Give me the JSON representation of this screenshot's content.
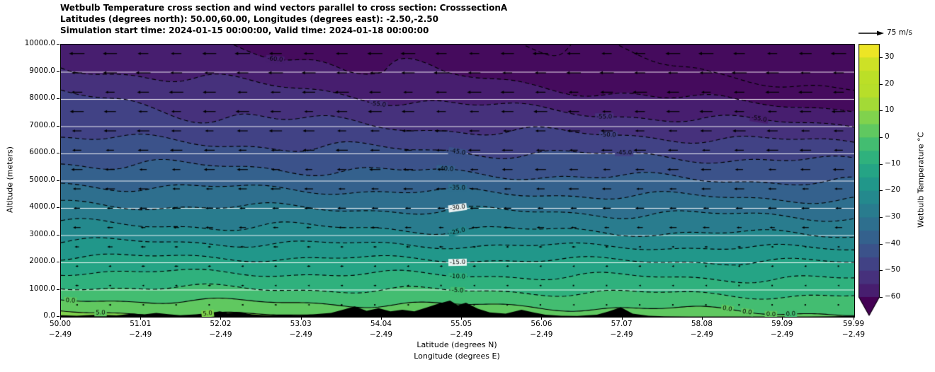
{
  "title": {
    "line1": "Wetbulb Temperature cross section and wind vectors parallel to cross section: CrosssectionA",
    "line2": "Latitudes (degrees north): 50.00,60.00, Longitudes (degrees east): -2.50,-2.50",
    "line3": "Simulation start time: 2024-01-15 00:00:00, Valid time: 2024-01-18 00:00:00"
  },
  "axes": {
    "ylabel": "Altitude (meters)",
    "xlabel_line1": "Latitude (degrees N)",
    "xlabel_line2": "Longitude (degrees E)",
    "y_ticks": [
      "0.0",
      "1000.0",
      "2000.0",
      "3000.0",
      "4000.0",
      "5000.0",
      "6000.0",
      "7000.0",
      "8000.0",
      "9000.0",
      "10000.0"
    ],
    "y_tick_values": [
      0,
      1000,
      2000,
      3000,
      4000,
      5000,
      6000,
      7000,
      8000,
      9000,
      10000
    ],
    "x_ticks": [
      {
        "lat": "50.00",
        "lon": "−2.49",
        "value": 50.0
      },
      {
        "lat": "51.01",
        "lon": "−2.49",
        "value": 51.01
      },
      {
        "lat": "52.02",
        "lon": "−2.49",
        "value": 52.02
      },
      {
        "lat": "53.03",
        "lon": "−2.49",
        "value": 53.03
      },
      {
        "lat": "54.04",
        "lon": "−2.49",
        "value": 54.04
      },
      {
        "lat": "55.05",
        "lon": "−2.49",
        "value": 55.05
      },
      {
        "lat": "56.06",
        "lon": "−2.49",
        "value": 56.06
      },
      {
        "lat": "57.07",
        "lon": "−2.49",
        "value": 57.07
      },
      {
        "lat": "58.08",
        "lon": "−2.49",
        "value": 58.08
      },
      {
        "lat": "59.09",
        "lon": "−2.49",
        "value": 59.09
      },
      {
        "lat": "59.99",
        "lon": "−2.49",
        "value": 59.99
      }
    ]
  },
  "colorbar": {
    "label": "Wetbulb Temperature °C",
    "ticks": [
      "30",
      "20",
      "10",
      "0",
      "−10",
      "−20",
      "−30",
      "−40",
      "−50",
      "−60"
    ],
    "tick_values": [
      30,
      20,
      10,
      0,
      -10,
      -20,
      -30,
      -40,
      -50,
      -60
    ],
    "vmin": -60,
    "vmax": 35,
    "extend": "min"
  },
  "quiver_key": {
    "label": "75 m/s",
    "speed_m_s": 75
  },
  "chart_data": {
    "type": "heatmap",
    "title": "Wetbulb Temperature cross section and wind vectors parallel to cross section: CrosssectionA",
    "xlabel": "Latitude (degrees N) / Longitude (degrees E)",
    "ylabel": "Altitude (meters)",
    "x_latitudes": [
      50,
      51,
      52,
      53,
      54,
      55,
      56,
      57,
      58,
      59,
      60
    ],
    "longitude_deg_e": -2.49,
    "y_altitudes_m": [
      0,
      1000,
      2000,
      3000,
      4000,
      5000,
      6000,
      7000,
      8000,
      9000,
      10000
    ],
    "x_range": [
      50.0,
      59.99
    ],
    "y_range": [
      0,
      10000
    ],
    "wetbulb_c": [
      [
        7.0,
        6.4,
        5.8,
        5.2,
        4.6,
        4.0,
        3.4,
        2.8,
        2.2,
        1.6,
        1.0
      ],
      [
        -4.0,
        -4.3,
        -4.6,
        -4.9,
        -5.2,
        -5.5,
        -5.8,
        -6.1,
        -6.4,
        -6.7,
        -7.0
      ],
      [
        -13.0,
        -13.2,
        -13.4,
        -13.6,
        -13.8,
        -14.0,
        -14.2,
        -14.4,
        -14.6,
        -14.8,
        -15.0
      ],
      [
        -22.0,
        -22.3,
        -22.6,
        -22.9,
        -23.2,
        -23.5,
        -23.8,
        -24.1,
        -24.4,
        -24.7,
        -25.0
      ],
      [
        -29.0,
        -29.4,
        -29.7,
        -30.1,
        -30.4,
        -30.8,
        -31.1,
        -31.5,
        -31.8,
        -32.2,
        -32.5
      ],
      [
        -36.0,
        -36.5,
        -36.9,
        -37.4,
        -37.8,
        -38.3,
        -38.7,
        -39.2,
        -39.6,
        -40.1,
        -40.5
      ],
      [
        -42.0,
        -42.5,
        -43.0,
        -43.5,
        -44.0,
        -44.5,
        -45.0,
        -45.5,
        -46.0,
        -46.5,
        -47.0
      ],
      [
        -47.0,
        -47.8,
        -48.5,
        -49.3,
        -50.0,
        -50.8,
        -51.5,
        -52.3,
        -53.0,
        -53.8,
        -54.5
      ],
      [
        -49.0,
        -50.4,
        -51.8,
        -53.2,
        -54.6,
        -56.0,
        -57.4,
        -58.8,
        -60.2,
        -61.6,
        -63.0
      ],
      [
        -54.0,
        -55.4,
        -56.8,
        -58.2,
        -59.6,
        -61.0,
        -62.4,
        -63.8,
        -65.2,
        -66.6,
        -68.0
      ],
      [
        -57.0,
        -58.3,
        -59.6,
        -60.9,
        -62.2,
        -63.5,
        -64.8,
        -66.1,
        -67.4,
        -68.7,
        -70.0
      ]
    ],
    "contour_levels": [
      -65,
      -60,
      -55,
      -50,
      -45,
      -40,
      -35,
      -30,
      -25,
      -20,
      -15,
      -10,
      -5,
      0,
      5
    ],
    "contour_interval_c": 5,
    "contour_labels": [
      {
        "level": 5,
        "x_frac": 0.05
      },
      {
        "level": 5,
        "x_frac": 0.185
      },
      {
        "level": 0,
        "x_frac": 0.012
      },
      {
        "level": 0,
        "x_frac": 0.84
      },
      {
        "level": 0,
        "x_frac": 0.865
      },
      {
        "level": 0,
        "x_frac": 0.895
      },
      {
        "level": 0,
        "x_frac": 0.92
      },
      {
        "level": -5,
        "x_frac": 0.5
      },
      {
        "level": -10,
        "x_frac": 0.5
      },
      {
        "level": -15,
        "x_frac": 0.5
      },
      {
        "level": -25,
        "x_frac": 0.5
      },
      {
        "level": -30,
        "x_frac": 0.5
      },
      {
        "level": -35,
        "x_frac": 0.5
      },
      {
        "level": -40,
        "x_frac": 0.485
      },
      {
        "level": -45,
        "x_frac": 0.5
      },
      {
        "level": -45,
        "x_frac": 0.71
      },
      {
        "level": -50,
        "x_frac": 0.69
      },
      {
        "level": -55,
        "x_frac": 0.4
      },
      {
        "level": -55,
        "x_frac": 0.685
      },
      {
        "level": -55,
        "x_frac": 0.88
      },
      {
        "level": -60,
        "x_frac": 0.27
      }
    ],
    "wind": {
      "unit": "m/s",
      "reference_speed": 75,
      "direction": "arrows point toward lower latitude (left)",
      "row_altitudes_m": [
        440,
        1150,
        1860,
        2570,
        3280,
        3990,
        4700,
        5410,
        6120,
        6830,
        7540,
        8250,
        8960,
        9670
      ],
      "speeds_m_s": [
        8,
        10,
        12,
        16,
        22,
        26,
        30,
        33,
        36,
        38,
        40,
        42,
        44,
        45
      ],
      "columns": 24
    },
    "terrain": {
      "lat": [
        50.0,
        50.2,
        50.45,
        50.7,
        50.9,
        51.05,
        51.2,
        51.35,
        51.5,
        51.7,
        51.9,
        52.0,
        52.1,
        52.25,
        52.4,
        52.6,
        52.8,
        53.0,
        53.2,
        53.4,
        53.55,
        53.7,
        53.85,
        54.0,
        54.15,
        54.3,
        54.45,
        54.6,
        54.75,
        54.9,
        55.0,
        55.1,
        55.25,
        55.4,
        55.6,
        55.8,
        55.95,
        56.1,
        56.3,
        56.5,
        56.75,
        56.9,
        57.05,
        57.2,
        57.4,
        57.6,
        57.9,
        58.2,
        58.6,
        59.0,
        59.4,
        59.7,
        59.99
      ],
      "height_m": [
        60,
        40,
        80,
        50,
        120,
        90,
        140,
        100,
        60,
        90,
        150,
        200,
        140,
        170,
        90,
        50,
        80,
        60,
        100,
        140,
        260,
        380,
        220,
        320,
        200,
        260,
        200,
        340,
        480,
        600,
        420,
        520,
        300,
        160,
        120,
        260,
        160,
        80,
        40,
        30,
        80,
        200,
        350,
        120,
        40,
        20,
        10,
        15,
        10,
        15,
        10,
        20,
        30
      ]
    },
    "colormap": {
      "name": "viridis",
      "stops": [
        [
          0,
          "#440154"
        ],
        [
          0.1,
          "#482878"
        ],
        [
          0.2,
          "#3e4a89"
        ],
        [
          0.3,
          "#31688e"
        ],
        [
          0.4,
          "#26828e"
        ],
        [
          0.5,
          "#1f9e89"
        ],
        [
          0.6,
          "#35b779"
        ],
        [
          0.7,
          "#6ece58"
        ],
        [
          0.8,
          "#b5de2b"
        ],
        [
          0.9,
          "#bddf26"
        ],
        [
          1,
          "#fde725"
        ]
      ]
    },
    "grid_color": "#ffffff",
    "contour_color": "#000000",
    "terrain_color": "#000000",
    "legend_position": "right-colorbar"
  }
}
